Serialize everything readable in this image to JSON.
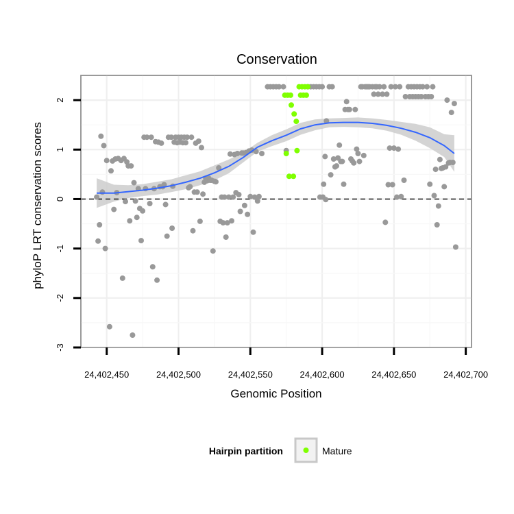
{
  "chart_data": {
    "type": "scatter",
    "title": "Conservation",
    "xlabel": "Genomic Position",
    "ylabel": "phyloP LRT conservation scores",
    "xlim": [
      24402432,
      24402704
    ],
    "ylim": [
      -3,
      2.5
    ],
    "x_ticks": [
      24402450,
      24402500,
      24402550,
      24402600,
      24402650,
      24402700
    ],
    "x_tick_labels": [
      "24,402,450",
      "24,402,500",
      "24,402,550",
      "24,402,600",
      "24,402,650",
      "24,402,700"
    ],
    "y_ticks": [
      -3,
      -2,
      -1,
      0,
      1,
      2
    ],
    "y_tick_labels": [
      "-3",
      "-2",
      "-1",
      "0",
      "1",
      "2"
    ],
    "grid": true,
    "reference_line": {
      "y": 0,
      "style": "dashed"
    },
    "legend": {
      "title": "Hairpin partition",
      "entries": [
        "Mature"
      ],
      "position": "bottom"
    },
    "colors": {
      "other": "#999999",
      "mature": "#7fff00",
      "smooth": "#3366ff",
      "band": "#cccccc"
    },
    "series": [
      {
        "group": "other",
        "points": [
          [
            24402443,
            0.04
          ],
          [
            24402444,
            -0.85
          ],
          [
            24402445,
            -0.52
          ],
          [
            24402446,
            1.27
          ],
          [
            24402447,
            0.14
          ],
          [
            24402448,
            1.08
          ],
          [
            24402449,
            -1.0
          ],
          [
            24402450,
            0.78
          ],
          [
            24402452,
            -2.58
          ],
          [
            24402453,
            0.57
          ],
          [
            24402454,
            0.77
          ],
          [
            24402455,
            -0.21
          ],
          [
            24402456,
            0.81
          ],
          [
            24402457,
            0.13
          ],
          [
            24402458,
            0.82
          ],
          [
            24402460,
            0.78
          ],
          [
            24402461,
            -1.6
          ],
          [
            24402462,
            0.82
          ],
          [
            24402463,
            -0.05
          ],
          [
            24402464,
            0.75
          ],
          [
            24402465,
            0.67
          ],
          [
            24402466,
            -0.44
          ],
          [
            24402467,
            0.67
          ],
          [
            24402468,
            -2.75
          ],
          [
            24402469,
            0.33
          ],
          [
            24402470,
            -0.04
          ],
          [
            24402471,
            -0.37
          ],
          [
            24402472,
            0.21
          ],
          [
            24402473,
            -0.19
          ],
          [
            24402474,
            -0.84
          ],
          [
            24402475,
            -0.24
          ],
          [
            24402476,
            1.25
          ],
          [
            24402477,
            0.21
          ],
          [
            24402478,
            1.25
          ],
          [
            24402480,
            -0.09
          ],
          [
            24402481,
            1.25
          ],
          [
            24402482,
            -1.37
          ],
          [
            24402483,
            0.21
          ],
          [
            24402484,
            1.16
          ],
          [
            24402485,
            -1.64
          ],
          [
            24402486,
            1.15
          ],
          [
            24402487,
            0.25
          ],
          [
            24402488,
            1.13
          ],
          [
            24402489,
            0.25
          ],
          [
            24402490,
            0.29
          ],
          [
            24402491,
            -0.11
          ],
          [
            24402492,
            -0.75
          ],
          [
            24402493,
            1.25
          ],
          [
            24402495,
            1.25
          ],
          [
            24402495.5,
            -0.59
          ],
          [
            24402496,
            0.26
          ],
          [
            24402497,
            1.15
          ],
          [
            24402498,
            1.25
          ],
          [
            24402499,
            1.14
          ],
          [
            24402500,
            1.25
          ],
          [
            24402501,
            1.15
          ],
          [
            24402502,
            1.25
          ],
          [
            24402503,
            1.14
          ],
          [
            24402504,
            1.25
          ],
          [
            24402505,
            1.14
          ],
          [
            24402506,
            1.25
          ],
          [
            24402507,
            0.23
          ],
          [
            24402508,
            0.25
          ],
          [
            24402509,
            1.25
          ],
          [
            24402510,
            -0.64
          ],
          [
            24402511,
            0.14
          ],
          [
            24402512,
            1.13
          ],
          [
            24402513,
            0.14
          ],
          [
            24402514,
            1.17
          ],
          [
            24402515,
            -0.45
          ],
          [
            24402516,
            1.04
          ],
          [
            24402517,
            0.1
          ],
          [
            24402518,
            0.34
          ],
          [
            24402519,
            0.42
          ],
          [
            24402520,
            0.37
          ],
          [
            24402521,
            0.42
          ],
          [
            24402522,
            0.38
          ],
          [
            24402523,
            0.38
          ],
          [
            24402524,
            -1.05
          ],
          [
            24402525,
            0.36
          ],
          [
            24402526,
            0.35
          ],
          [
            24402528,
            0.63
          ],
          [
            24402529,
            -0.45
          ],
          [
            24402530,
            0.04
          ],
          [
            24402531,
            -0.48
          ],
          [
            24402532,
            0.04
          ],
          [
            24402533,
            -0.77
          ],
          [
            24402534,
            -0.48
          ],
          [
            24402535,
            0.04
          ],
          [
            24402536,
            0.91
          ],
          [
            24402537,
            -0.44
          ],
          [
            24402538,
            0.04
          ],
          [
            24402539,
            0.9
          ],
          [
            24402540,
            0.13
          ],
          [
            24402541,
            0.92
          ],
          [
            24402542,
            0.09
          ],
          [
            24402543,
            -0.25
          ],
          [
            24402544,
            0.93
          ],
          [
            24402545,
            0.93
          ],
          [
            24402546,
            -0.13
          ],
          [
            24402547,
            0.94
          ],
          [
            24402548,
            -0.31
          ],
          [
            24402549,
            0.97
          ],
          [
            24402550,
            0.05
          ],
          [
            24402551,
            0.99
          ],
          [
            24402552,
            -0.67
          ],
          [
            24402553,
            0.04
          ],
          [
            24402554,
            0.96
          ],
          [
            24402555,
            -0.04
          ],
          [
            24402556,
            0.05
          ],
          [
            24402558,
            0.92
          ],
          [
            24402562,
            2.27
          ],
          [
            24402564,
            2.27
          ],
          [
            24402566,
            2.27
          ],
          [
            24402568,
            2.27
          ],
          [
            24402570,
            2.27
          ],
          [
            24402573,
            2.27
          ],
          [
            24402575,
            0.98
          ],
          [
            24402590,
            2.27
          ],
          [
            24402592,
            2.27
          ],
          [
            24402594,
            2.27
          ],
          [
            24402596,
            2.27
          ],
          [
            24402598,
            2.27
          ],
          [
            24402600,
            2.27
          ],
          [
            24402598.5,
            0.04
          ],
          [
            24402600.5,
            0.04
          ],
          [
            24402601,
            0.3
          ],
          [
            24402602,
            0.86
          ],
          [
            24402602.5,
            -0.01
          ],
          [
            24402603,
            1.58
          ],
          [
            24402605,
            2.27
          ],
          [
            24402606,
            0.49
          ],
          [
            24402607,
            2.27
          ],
          [
            24402608,
            0.81
          ],
          [
            24402609,
            0.65
          ],
          [
            24402610,
            0.67
          ],
          [
            24402611,
            0.83
          ],
          [
            24402612,
            1.09
          ],
          [
            24402613,
            0.76
          ],
          [
            24402614,
            0.76
          ],
          [
            24402615,
            0.3
          ],
          [
            24402616,
            1.81
          ],
          [
            24402617,
            1.97
          ],
          [
            24402618,
            1.81
          ],
          [
            24402619,
            1.81
          ],
          [
            24402620,
            0.81
          ],
          [
            24402621,
            0.77
          ],
          [
            24402622,
            0.73
          ],
          [
            24402623,
            1.81
          ],
          [
            24402624,
            1.01
          ],
          [
            24402625,
            0.92
          ],
          [
            24402626,
            0.76
          ],
          [
            24402627,
            2.27
          ],
          [
            24402628,
            2.27
          ],
          [
            24402629,
            0.88
          ],
          [
            24402630,
            2.27
          ],
          [
            24402631,
            2.27
          ],
          [
            24402632,
            2.27
          ],
          [
            24402633,
            2.27
          ],
          [
            24402635,
            2.27
          ],
          [
            24402636,
            2.12
          ],
          [
            24402637,
            2.27
          ],
          [
            24402638,
            2.27
          ],
          [
            24402639,
            2.12
          ],
          [
            24402640,
            2.27
          ],
          [
            24402642,
            2.12
          ],
          [
            24402643,
            2.27
          ],
          [
            24402644,
            -0.47
          ],
          [
            24402645,
            2.12
          ],
          [
            24402646,
            0.29
          ],
          [
            24402647,
            1.03
          ],
          [
            24402648,
            2.27
          ],
          [
            24402649,
            0.29
          ],
          [
            24402650,
            1.03
          ],
          [
            24402651,
            2.27
          ],
          [
            24402652,
            0.04
          ],
          [
            24402653,
            1.01
          ],
          [
            24402654,
            2.27
          ],
          [
            24402655,
            0.05
          ],
          [
            24402657,
            0.38
          ],
          [
            24402658,
            2.07
          ],
          [
            24402660,
            2.27
          ],
          [
            24402661,
            2.07
          ],
          [
            24402662,
            2.27
          ],
          [
            24402663,
            2.07
          ],
          [
            24402664,
            2.27
          ],
          [
            24402665,
            2.07
          ],
          [
            24402666,
            2.27
          ],
          [
            24402667,
            2.07
          ],
          [
            24402668,
            2.27
          ],
          [
            24402669,
            2.07
          ],
          [
            24402670,
            2.27
          ],
          [
            24402672,
            2.07
          ],
          [
            24402673,
            2.27
          ],
          [
            24402674,
            2.07
          ],
          [
            24402675,
            0.3
          ],
          [
            24402676,
            2.07
          ],
          [
            24402677,
            2.27
          ],
          [
            24402678,
            0.07
          ],
          [
            24402679,
            0.6
          ],
          [
            24402680,
            -0.52
          ],
          [
            24402681,
            -0.14
          ],
          [
            24402682,
            0.8
          ],
          [
            24402683,
            0.62
          ],
          [
            24402684,
            0.63
          ],
          [
            24402685,
            0.25
          ],
          [
            24402686,
            0.65
          ],
          [
            24402687,
            2.0
          ],
          [
            24402688,
            0.73
          ],
          [
            24402689,
            0.74
          ],
          [
            24402690,
            1.75
          ],
          [
            24402691,
            0.74
          ],
          [
            24402692,
            1.93
          ],
          [
            24402693,
            -0.97
          ]
        ]
      },
      {
        "name": "Mature",
        "group": "mature",
        "points": [
          [
            24402574,
            2.1
          ],
          [
            24402576,
            2.1
          ],
          [
            24402578,
            2.1
          ],
          [
            24402577,
            0.46
          ],
          [
            24402580,
            0.46
          ],
          [
            24402575,
            0.92
          ],
          [
            24402578.5,
            1.9
          ],
          [
            24402580.5,
            1.72
          ],
          [
            24402582,
            1.57
          ],
          [
            24402582.5,
            0.98
          ],
          [
            24402584,
            2.27
          ],
          [
            24402586,
            2.27
          ],
          [
            24402588,
            2.27
          ],
          [
            24402590,
            2.27
          ],
          [
            24402585,
            2.1
          ],
          [
            24402587,
            2.1
          ],
          [
            24402589,
            2.1
          ]
        ]
      }
    ],
    "smooth": {
      "x": [
        24402443,
        24402455,
        24402465,
        24402475,
        24402485,
        24402495,
        24402505,
        24402515,
        24402525,
        24402535,
        24402545,
        24402555,
        24402565,
        24402575,
        24402585,
        24402595,
        24402605,
        24402615,
        24402625,
        24402635,
        24402645,
        24402655,
        24402665,
        24402675,
        24402685,
        24402692
      ],
      "y": [
        0.12,
        0.12,
        0.15,
        0.18,
        0.22,
        0.27,
        0.34,
        0.42,
        0.53,
        0.66,
        0.84,
        1.05,
        1.18,
        1.29,
        1.42,
        1.5,
        1.54,
        1.55,
        1.55,
        1.53,
        1.49,
        1.43,
        1.35,
        1.24,
        1.08,
        0.92
      ],
      "lower": [
        -0.18,
        -0.05,
        0.02,
        0.06,
        0.09,
        0.14,
        0.2,
        0.28,
        0.38,
        0.52,
        0.74,
        0.96,
        1.07,
        1.17,
        1.3,
        1.39,
        1.45,
        1.46,
        1.45,
        1.43,
        1.38,
        1.3,
        1.18,
        1.03,
        0.85,
        0.55
      ],
      "upper": [
        0.42,
        0.29,
        0.28,
        0.3,
        0.35,
        0.4,
        0.48,
        0.56,
        0.68,
        0.8,
        0.94,
        1.14,
        1.29,
        1.41,
        1.54,
        1.61,
        1.63,
        1.64,
        1.65,
        1.63,
        1.6,
        1.56,
        1.52,
        1.45,
        1.31,
        1.29
      ]
    }
  }
}
